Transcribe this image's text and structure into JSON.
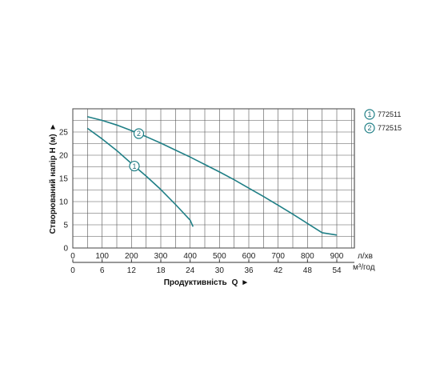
{
  "chart_data": {
    "type": "line",
    "ylabel": "Створюваний напір H (м)",
    "xlabel": "Продуктивність",
    "xlabel_symbol": "Q",
    "y_ticks": [
      0,
      5,
      10,
      15,
      20,
      25
    ],
    "ylim": [
      0,
      30
    ],
    "x_primary": {
      "unit": "л/хв",
      "ticks": [
        0,
        100,
        200,
        300,
        400,
        500,
        600,
        700,
        800,
        900
      ],
      "xlim": [
        0,
        960
      ]
    },
    "x_secondary": {
      "unit": "м³/год",
      "ticks": [
        0,
        6,
        12,
        18,
        24,
        30,
        36,
        42,
        48,
        54
      ],
      "xlim": [
        0,
        57.6
      ]
    },
    "grid": true,
    "legend_position": "right",
    "series": [
      {
        "name": "772511",
        "marker_label": "1",
        "color": "#1f7f86",
        "x": [
          50,
          100,
          150,
          200,
          250,
          300,
          350,
          400,
          410
        ],
        "y": [
          25.8,
          23.5,
          21.0,
          18.2,
          15.5,
          12.6,
          9.4,
          6.0,
          4.6
        ]
      },
      {
        "name": "772515",
        "marker_label": "2",
        "color": "#1f7f86",
        "x": [
          50,
          100,
          150,
          200,
          250,
          300,
          350,
          400,
          450,
          500,
          550,
          600,
          650,
          700,
          750,
          800,
          850,
          900
        ],
        "y": [
          28.3,
          27.5,
          26.5,
          25.3,
          24.0,
          22.6,
          21.1,
          19.6,
          18.0,
          16.4,
          14.7,
          12.9,
          11.1,
          9.2,
          7.3,
          5.3,
          3.3,
          2.8
        ]
      }
    ]
  }
}
